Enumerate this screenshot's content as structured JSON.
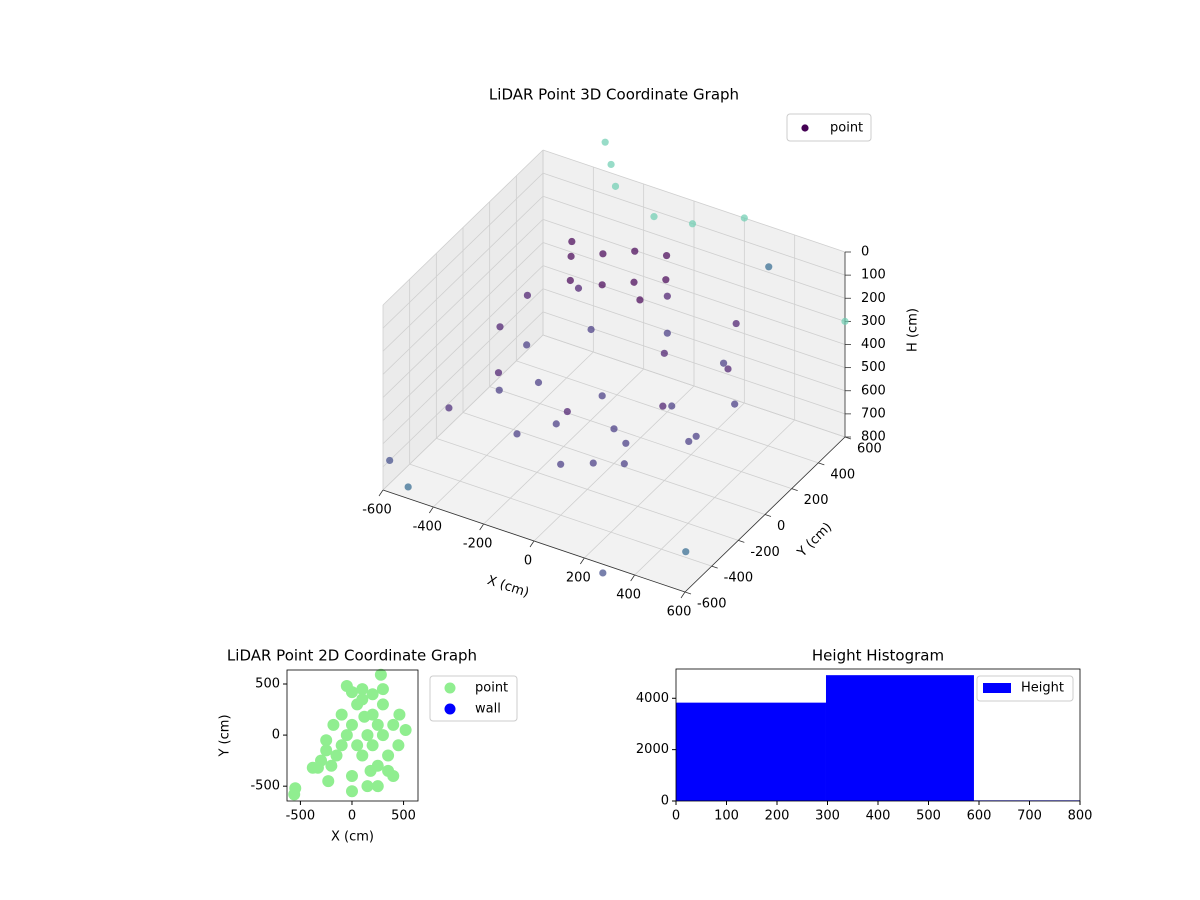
{
  "chart_data": [
    {
      "type": "scatter3d",
      "title": "LiDAR Point 3D Coordinate Graph",
      "x_label": "X (cm)",
      "y_label": "Y (cm)",
      "z_label": "H (cm)",
      "xlim": [
        -600,
        600
      ],
      "ylim": [
        -600,
        600
      ],
      "zlim": [
        800,
        0
      ],
      "xticks": [
        -600,
        -400,
        -200,
        0,
        200,
        400,
        600
      ],
      "yticks": [
        -600,
        -400,
        -200,
        0,
        200,
        400,
        600
      ],
      "zticks": [
        0,
        100,
        200,
        300,
        400,
        500,
        600,
        700,
        800
      ],
      "grid": true,
      "legend": "upper right",
      "series": [
        {
          "name": "point",
          "color": "#440154",
          "x": [
            -250,
            -150,
            -50,
            50,
            0,
            -100,
            -200,
            100,
            -300,
            50,
            -400,
            -300,
            0,
            300,
            400,
            300,
            0,
            -300,
            -450,
            200,
            -350,
            -200,
            0,
            200,
            350,
            400,
            250,
            0,
            -250,
            -400,
            -150,
            100,
            0,
            -100,
            150,
            -300,
            300,
            50,
            -600,
            -500,
            300,
            550,
            -550,
            -300,
            -250,
            0,
            100,
            -100,
            200,
            350,
            600
          ],
          "y": [
            150,
            200,
            250,
            300,
            150,
            100,
            50,
            200,
            250,
            100,
            -100,
            -300,
            -350,
            -200,
            100,
            350,
            400,
            300,
            200,
            0,
            -200,
            -350,
            -400,
            -300,
            -100,
            150,
            350,
            400,
            300,
            100,
            -150,
            -100,
            0,
            100,
            150,
            0,
            50,
            -250,
            -550,
            -600,
            -650,
            -500,
            -200,
            500,
            450,
            300,
            400,
            200,
            600,
            500,
            600
          ],
          "z": [
            80,
            60,
            40,
            50,
            100,
            120,
            110,
            80,
            90,
            130,
            300,
            350,
            380,
            330,
            300,
            280,
            300,
            320,
            350,
            250,
            500,
            550,
            580,
            560,
            520,
            480,
            470,
            460,
            480,
            490,
            600,
            620,
            650,
            600,
            580,
            560,
            600,
            640,
            700,
            750,
            800,
            700,
            650,
            -200,
            -150,
            -100,
            -50,
            -250,
            0,
            100,
            300
          ],
          "colors": [
            "#440154",
            "#440154",
            "#440154",
            "#440154",
            "#440154",
            "#440154",
            "#440154",
            "#440154",
            "#440154",
            "#440154",
            "#481a6c",
            "#481a6c",
            "#481a6c",
            "#481a6c",
            "#481a6c",
            "#481a6c",
            "#481a6c",
            "#481a6c",
            "#481a6c",
            "#481a6c",
            "#453781",
            "#453781",
            "#453781",
            "#453781",
            "#453781",
            "#453781",
            "#453781",
            "#453781",
            "#453781",
            "#453781",
            "#453781",
            "#453781",
            "#453781",
            "#453781",
            "#453781",
            "#453781",
            "#453781",
            "#453781",
            "#3e4a89",
            "#31688e",
            "#3e4a89",
            "#31688e",
            "#482878",
            "#6ccdb0",
            "#6ccdb0",
            "#6ccdb0",
            "#6ccdb0",
            "#6ccdb0",
            "#6ccdb0",
            "#31688e",
            "#6ccdb0"
          ]
        }
      ]
    },
    {
      "type": "scatter",
      "title": "LiDAR Point 2D Coordinate Graph",
      "x_label": "X (cm)",
      "y_label": "Y (cm)",
      "xlim": [
        -630,
        640
      ],
      "ylim": [
        -645,
        637
      ],
      "xticks": [
        -500,
        0,
        500
      ],
      "yticks": [
        -500,
        0,
        500
      ],
      "legend": "outside upper right",
      "series": [
        {
          "name": "point",
          "color": "#90ee90",
          "x": [
            -560,
            -550,
            -380,
            -300,
            -250,
            -200,
            -150,
            -100,
            -50,
            0,
            0,
            50,
            100,
            150,
            200,
            250,
            300,
            350,
            400,
            450,
            520,
            -50,
            0,
            100,
            200,
            300,
            -250,
            -180,
            50,
            150,
            250,
            350,
            400,
            0,
            100,
            200,
            300,
            -100,
            -230,
            250,
            460,
            280,
            -330,
            120,
            180
          ],
          "y": [
            -580,
            -520,
            -320,
            -250,
            -150,
            -300,
            -200,
            -100,
            0,
            100,
            -400,
            300,
            450,
            -500,
            200,
            -300,
            0,
            -200,
            100,
            -100,
            50,
            480,
            420,
            350,
            400,
            300,
            -50,
            100,
            -100,
            0,
            100,
            -350,
            -400,
            -550,
            -200,
            -100,
            450,
            200,
            -450,
            -500,
            200,
            590,
            -320,
            180,
            -350
          ]
        },
        {
          "name": "wall",
          "color": "#0000ff",
          "x": [],
          "y": []
        }
      ]
    },
    {
      "type": "histogram",
      "title": "Height Histogram",
      "bins": [
        0,
        297,
        590,
        885
      ],
      "values": [
        3830,
        4900,
        25
      ],
      "xlim": [
        0,
        800
      ],
      "ylim": [
        0,
        5140
      ],
      "xticks": [
        0,
        100,
        200,
        300,
        400,
        500,
        600,
        700,
        800
      ],
      "yticks": [
        0,
        2000,
        4000
      ],
      "legend": "upper right",
      "series": [
        {
          "name": "Height",
          "color": "#0000ff"
        }
      ]
    }
  ]
}
